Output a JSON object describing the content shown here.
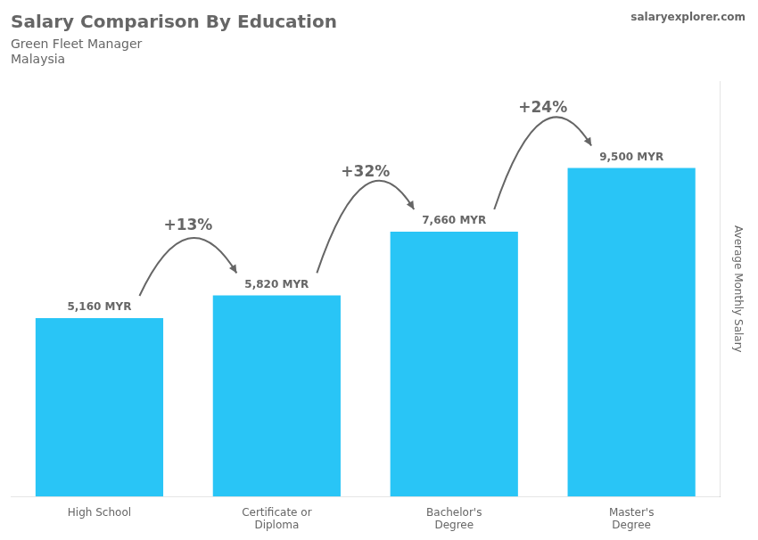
{
  "chart_data": {
    "type": "bar",
    "title": "Salary Comparison By Education",
    "subtitle": [
      "Green Fleet Manager",
      "Malaysia"
    ],
    "ylabel": "Average Monthly Salary",
    "categories": [
      "High School",
      "Certificate or\nDiploma",
      "Bachelor's\nDegree",
      "Master's\nDegree"
    ],
    "values": [
      5160,
      5820,
      7660,
      9500
    ],
    "value_labels": [
      "5,160 MYR",
      "5,820 MYR",
      "7,660 MYR",
      "9,500 MYR"
    ],
    "data_labels": true,
    "annotations": [
      "+13%",
      "+32%",
      "+24%",
      "salaryexplorer.com"
    ],
    "color": "#29c5f6",
    "ylim": [
      0,
      12000
    ],
    "grid": false,
    "legend": false,
    "tick_labels": "x"
  }
}
